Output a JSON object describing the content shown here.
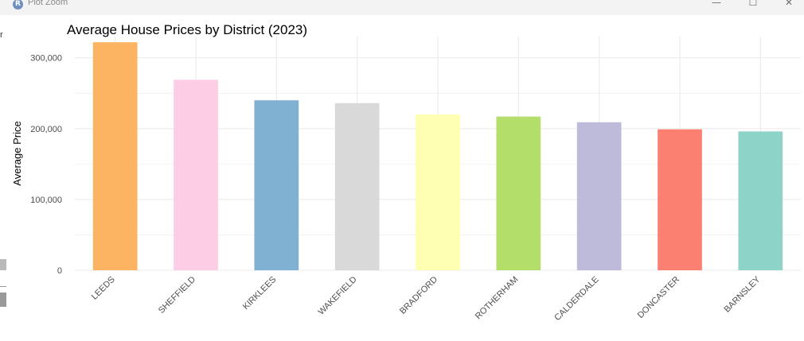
{
  "window": {
    "app_icon_letter": "R",
    "title": "Plot Zoom",
    "minimize_glyph": "—",
    "maximize_glyph": "☐",
    "close_glyph": "✕"
  },
  "edge": {
    "fragment": "r"
  },
  "colors": {
    "gridline": "#ebebeb",
    "background": "#ffffff",
    "tick_text": "#4d4d4d",
    "title_text": "#000000"
  },
  "chart_data": {
    "type": "bar",
    "title": "Average House Prices by District (2023)",
    "xlabel": "",
    "ylabel": "Average Price",
    "ylim": [
      0,
      330000
    ],
    "grid": true,
    "legend": "none",
    "y_ticks": [
      0,
      100000,
      200000,
      300000
    ],
    "y_tick_labels": [
      "0",
      "100,000",
      "200,000",
      "300,000"
    ],
    "categories": [
      "LEEDS",
      "SHEFFIELD",
      "KIRKLEES",
      "WAKEFIELD",
      "BRADFORD",
      "ROTHERHAM",
      "CALDERDALE",
      "DONCASTER",
      "BARNSLEY"
    ],
    "values": [
      322000,
      269000,
      240000,
      236000,
      220000,
      217000,
      209000,
      199000,
      196000
    ],
    "bar_colors": [
      "#FDB462",
      "#FCCDE5",
      "#80B1D3",
      "#D9D9D9",
      "#FFFFB3",
      "#B3DE69",
      "#BEBADA",
      "#FB8072",
      "#8DD3C7"
    ]
  }
}
